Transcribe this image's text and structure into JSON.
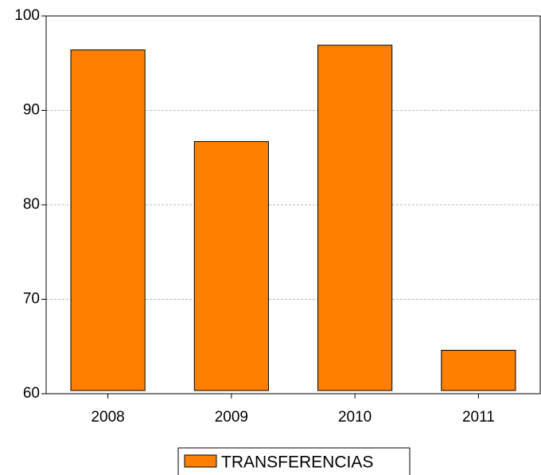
{
  "chart_data": {
    "type": "bar",
    "categories": [
      "2008",
      "2009",
      "2010",
      "2011"
    ],
    "series": [
      {
        "name": "TRANSFERENCIAS",
        "color": "#ff8000",
        "values": [
          96.4,
          86.7,
          96.9,
          64.6
        ]
      }
    ],
    "ylim": [
      60,
      100
    ],
    "yticks": [
      60,
      70,
      80,
      90,
      100
    ],
    "grid": true,
    "legend": "bottom"
  }
}
